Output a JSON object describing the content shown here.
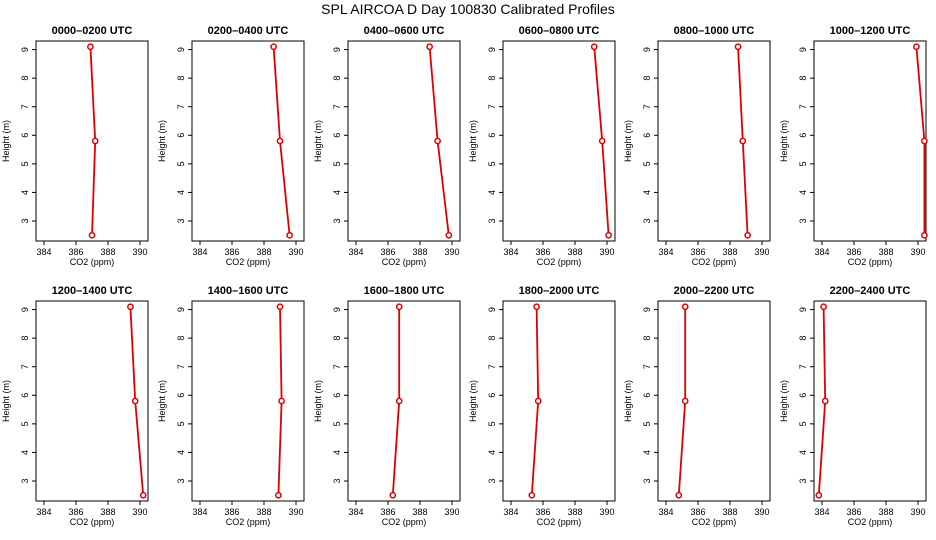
{
  "figure": {
    "title": "SPL AIRCOA D  Day 100830  Calibrated Profiles"
  },
  "colors": {
    "series": "#dd0000",
    "axis": "#000000",
    "background": "#ffffff"
  },
  "chart_data": [
    {
      "type": "line",
      "title": "0000–0200 UTC",
      "xlabel": "CO2 (ppm)",
      "ylabel": "Height (m)",
      "xlim": [
        383.5,
        390.5
      ],
      "ylim": [
        2.3,
        9.3
      ],
      "xticks": [
        384,
        386,
        388,
        390
      ],
      "yticks": [
        3,
        4,
        5,
        6,
        7,
        8,
        9
      ],
      "x": [
        387.0,
        387.2,
        386.9
      ],
      "y": [
        2.5,
        5.8,
        9.1
      ]
    },
    {
      "type": "line",
      "title": "0200–0400 UTC",
      "xlabel": "CO2 (ppm)",
      "ylabel": "Height (m)",
      "xlim": [
        383.5,
        390.5
      ],
      "ylim": [
        2.3,
        9.3
      ],
      "xticks": [
        384,
        386,
        388,
        390
      ],
      "yticks": [
        3,
        4,
        5,
        6,
        7,
        8,
        9
      ],
      "x": [
        389.6,
        389.0,
        388.6
      ],
      "y": [
        2.5,
        5.8,
        9.1
      ]
    },
    {
      "type": "line",
      "title": "0400–0600 UTC",
      "xlabel": "CO2 (ppm)",
      "ylabel": "Height (m)",
      "xlim": [
        383.5,
        390.5
      ],
      "ylim": [
        2.3,
        9.3
      ],
      "xticks": [
        384,
        386,
        388,
        390
      ],
      "yticks": [
        3,
        4,
        5,
        6,
        7,
        8,
        9
      ],
      "x": [
        389.8,
        389.1,
        388.6
      ],
      "y": [
        2.5,
        5.8,
        9.1
      ]
    },
    {
      "type": "line",
      "title": "0600–0800 UTC",
      "xlabel": "CO2 (ppm)",
      "ylabel": "Height (m)",
      "xlim": [
        383.5,
        390.5
      ],
      "ylim": [
        2.3,
        9.3
      ],
      "xticks": [
        384,
        386,
        388,
        390
      ],
      "yticks": [
        3,
        4,
        5,
        6,
        7,
        8,
        9
      ],
      "x": [
        390.1,
        389.7,
        389.2
      ],
      "y": [
        2.5,
        5.8,
        9.1
      ]
    },
    {
      "type": "line",
      "title": "0800–1000 UTC",
      "xlabel": "CO2 (ppm)",
      "ylabel": "Height (m)",
      "xlim": [
        383.5,
        390.5
      ],
      "ylim": [
        2.3,
        9.3
      ],
      "xticks": [
        384,
        386,
        388,
        390
      ],
      "yticks": [
        3,
        4,
        5,
        6,
        7,
        8,
        9
      ],
      "x": [
        389.1,
        388.8,
        388.5
      ],
      "y": [
        2.5,
        5.8,
        9.1
      ]
    },
    {
      "type": "line",
      "title": "1000–1200 UTC",
      "xlabel": "CO2 (ppm)",
      "ylabel": "Height (m)",
      "xlim": [
        383.5,
        390.5
      ],
      "ylim": [
        2.3,
        9.3
      ],
      "xticks": [
        384,
        386,
        388,
        390
      ],
      "yticks": [
        3,
        4,
        5,
        6,
        7,
        8,
        9
      ],
      "x": [
        390.4,
        390.4,
        389.9
      ],
      "y": [
        2.5,
        5.8,
        9.1
      ]
    },
    {
      "type": "line",
      "title": "1200–1400 UTC",
      "xlabel": "CO2 (ppm)",
      "ylabel": "Height (m)",
      "xlim": [
        383.5,
        390.5
      ],
      "ylim": [
        2.3,
        9.3
      ],
      "xticks": [
        384,
        386,
        388,
        390
      ],
      "yticks": [
        3,
        4,
        5,
        6,
        7,
        8,
        9
      ],
      "x": [
        390.2,
        389.7,
        389.4
      ],
      "y": [
        2.5,
        5.8,
        9.1
      ]
    },
    {
      "type": "line",
      "title": "1400–1600 UTC",
      "xlabel": "CO2 (ppm)",
      "ylabel": "Height (m)",
      "xlim": [
        383.5,
        390.5
      ],
      "ylim": [
        2.3,
        9.3
      ],
      "xticks": [
        384,
        386,
        388,
        390
      ],
      "yticks": [
        3,
        4,
        5,
        6,
        7,
        8,
        9
      ],
      "x": [
        388.9,
        389.1,
        389.0
      ],
      "y": [
        2.5,
        5.8,
        9.1
      ]
    },
    {
      "type": "line",
      "title": "1600–1800 UTC",
      "xlabel": "CO2 (ppm)",
      "ylabel": "Height (m)",
      "xlim": [
        383.5,
        390.5
      ],
      "ylim": [
        2.3,
        9.3
      ],
      "xticks": [
        384,
        386,
        388,
        390
      ],
      "yticks": [
        3,
        4,
        5,
        6,
        7,
        8,
        9
      ],
      "x": [
        386.3,
        386.7,
        386.7
      ],
      "y": [
        2.5,
        5.8,
        9.1
      ]
    },
    {
      "type": "line",
      "title": "1800–2000 UTC",
      "xlabel": "CO2 (ppm)",
      "ylabel": "Height (m)",
      "xlim": [
        383.5,
        390.5
      ],
      "ylim": [
        2.3,
        9.3
      ],
      "xticks": [
        384,
        386,
        388,
        390
      ],
      "yticks": [
        3,
        4,
        5,
        6,
        7,
        8,
        9
      ],
      "x": [
        385.3,
        385.7,
        385.6
      ],
      "y": [
        2.5,
        5.8,
        9.1
      ]
    },
    {
      "type": "line",
      "title": "2000–2200 UTC",
      "xlabel": "CO2 (ppm)",
      "ylabel": "Height (m)",
      "xlim": [
        383.5,
        390.5
      ],
      "ylim": [
        2.3,
        9.3
      ],
      "xticks": [
        384,
        386,
        388,
        390
      ],
      "yticks": [
        3,
        4,
        5,
        6,
        7,
        8,
        9
      ],
      "x": [
        384.8,
        385.2,
        385.2
      ],
      "y": [
        2.5,
        5.8,
        9.1
      ]
    },
    {
      "type": "line",
      "title": "2200–2400 UTC",
      "xlabel": "CO2 (ppm)",
      "ylabel": "Height (m)",
      "xlim": [
        383.5,
        390.5
      ],
      "ylim": [
        2.3,
        9.3
      ],
      "xticks": [
        384,
        386,
        388,
        390
      ],
      "yticks": [
        3,
        4,
        5,
        6,
        7,
        8,
        9
      ],
      "x": [
        383.8,
        384.2,
        384.1
      ],
      "y": [
        2.5,
        5.8,
        9.1
      ]
    }
  ]
}
